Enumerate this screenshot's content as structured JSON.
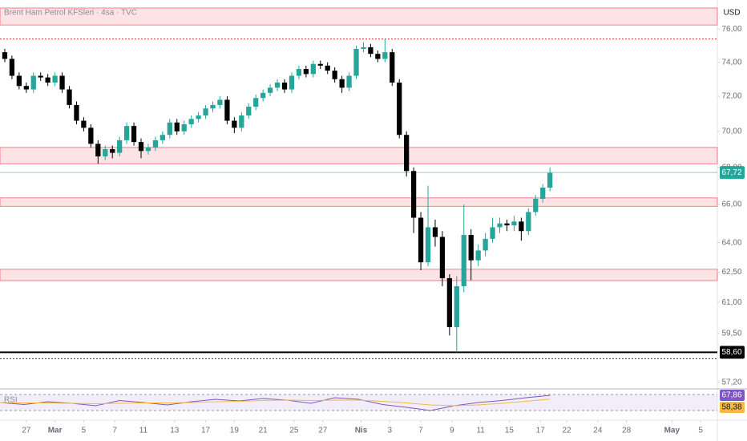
{
  "chart_data": {
    "type": "candlestick",
    "title": "Brent Ham Petrol KFSleri · 4sa · TVC",
    "currency": "USD",
    "log_scale": true,
    "grid": false,
    "up_color": "#26a69a",
    "down_color": "#000000",
    "xlim": [
      0,
      300
    ],
    "ylim": [
      56.9,
      77.8
    ],
    "yticks": [
      {
        "value": 76,
        "label": "76,00"
      },
      {
        "value": 74,
        "label": "74,00"
      },
      {
        "value": 72,
        "label": "72,00"
      },
      {
        "value": 70,
        "label": "70,00"
      },
      {
        "value": 68,
        "label": "68,00"
      },
      {
        "value": 66,
        "label": "66,00"
      },
      {
        "value": 64,
        "label": "64,00"
      },
      {
        "value": 62.5,
        "label": "62,50"
      },
      {
        "value": 61,
        "label": "61,00"
      },
      {
        "value": 59.5,
        "label": "59,50"
      },
      {
        "value": 57.2,
        "label": "57,20"
      }
    ],
    "xticks": [
      {
        "value": 11,
        "label": "27"
      },
      {
        "value": 23,
        "label": "Mar"
      },
      {
        "value": 35,
        "label": "5"
      },
      {
        "value": 48,
        "label": "7"
      },
      {
        "value": 60,
        "label": "11"
      },
      {
        "value": 73,
        "label": "13"
      },
      {
        "value": 86,
        "label": "17"
      },
      {
        "value": 98,
        "label": "19"
      },
      {
        "value": 110,
        "label": "21"
      },
      {
        "value": 123,
        "label": "25"
      },
      {
        "value": 135,
        "label": "27"
      },
      {
        "value": 151,
        "label": "Nis"
      },
      {
        "value": 163,
        "label": "3"
      },
      {
        "value": 176,
        "label": "7"
      },
      {
        "value": 189,
        "label": "9"
      },
      {
        "value": 201,
        "label": "11"
      },
      {
        "value": 213,
        "label": "15"
      },
      {
        "value": 226,
        "label": "17"
      },
      {
        "value": 237,
        "label": "22"
      },
      {
        "value": 250,
        "label": "24"
      },
      {
        "value": 262,
        "label": "28"
      },
      {
        "value": 281,
        "label": "May"
      },
      {
        "value": 293,
        "label": "5"
      }
    ],
    "candles": {
      "x": [
        2,
        5,
        8,
        11,
        14,
        17,
        20,
        23,
        26,
        29,
        32,
        35,
        38,
        41,
        44,
        47,
        50,
        53,
        56,
        59,
        62,
        65,
        68,
        71,
        74,
        77,
        80,
        83,
        86,
        89,
        92,
        95,
        98,
        101,
        104,
        107,
        110,
        113,
        116,
        119,
        122,
        125,
        128,
        131,
        134,
        137,
        140,
        143,
        146,
        149,
        152,
        155,
        158,
        161,
        164,
        167,
        170,
        173,
        176,
        179,
        182,
        185,
        188,
        191,
        194,
        197,
        200,
        203,
        206,
        209,
        212,
        215,
        218,
        221,
        224,
        227,
        230
      ],
      "open": [
        74.6,
        74.2,
        73.2,
        72.6,
        72.4,
        73.2,
        73.1,
        72.8,
        73.2,
        72.4,
        71.5,
        70.6,
        70.2,
        69.3,
        68.6,
        69.0,
        68.8,
        69.5,
        70.3,
        69.4,
        68.9,
        69.1,
        69.5,
        69.8,
        70.5,
        70.0,
        70.4,
        70.7,
        70.9,
        71.3,
        71.5,
        71.8,
        70.6,
        70.2,
        70.9,
        71.4,
        71.9,
        72.2,
        72.5,
        72.8,
        72.4,
        73.2,
        73.6,
        73.3,
        73.9,
        73.8,
        73.5,
        73.0,
        72.5,
        73.2,
        74.8,
        74.9,
        74.5,
        74.2,
        74.6,
        72.8,
        69.8,
        67.8,
        65.3,
        63.0,
        64.8,
        64.3,
        62.2,
        59.8,
        61.8,
        64.4,
        63.1,
        63.6,
        64.2,
        64.8,
        65.0,
        64.9,
        65.1,
        64.6,
        65.6,
        66.3,
        66.9
      ],
      "high": [
        74.8,
        74.4,
        73.4,
        72.8,
        73.4,
        73.4,
        73.3,
        73.4,
        73.4,
        72.6,
        71.7,
        70.8,
        70.4,
        69.5,
        69.2,
        69.2,
        69.7,
        70.5,
        70.5,
        69.6,
        69.3,
        69.7,
        70.0,
        70.7,
        70.7,
        70.6,
        70.9,
        71.1,
        71.5,
        71.7,
        72.0,
        72.0,
        70.8,
        71.1,
        71.6,
        72.1,
        72.4,
        72.7,
        73.0,
        73.0,
        73.4,
        73.8,
        73.8,
        74.1,
        74.1,
        74.0,
        73.7,
        73.2,
        73.4,
        75.0,
        75.2,
        75.1,
        74.7,
        75.4,
        74.8,
        73.0,
        70.0,
        68.0,
        65.6,
        67.0,
        65.2,
        64.6,
        62.4,
        62.3,
        66.0,
        64.7,
        63.9,
        64.5,
        65.3,
        65.3,
        65.2,
        65.4,
        65.3,
        65.8,
        66.5,
        67.1,
        68.0
      ],
      "low": [
        74.0,
        73.0,
        72.4,
        72.2,
        72.2,
        72.9,
        72.6,
        72.6,
        72.2,
        71.3,
        70.4,
        70.0,
        69.1,
        68.2,
        68.4,
        68.5,
        68.6,
        69.3,
        69.2,
        68.5,
        68.7,
        68.9,
        69.3,
        69.6,
        69.8,
        69.8,
        70.2,
        70.5,
        70.7,
        71.1,
        71.3,
        70.4,
        69.9,
        70.0,
        70.7,
        71.2,
        71.7,
        72.0,
        72.3,
        72.2,
        72.2,
        73.0,
        73.1,
        73.1,
        73.6,
        73.3,
        72.8,
        72.2,
        72.3,
        73.0,
        74.6,
        74.3,
        74.0,
        74.0,
        72.6,
        69.6,
        67.5,
        64.5,
        62.6,
        62.8,
        63.8,
        61.8,
        59.4,
        58.6,
        61.5,
        62.1,
        62.8,
        63.3,
        64.0,
        64.5,
        64.6,
        64.6,
        64.1,
        64.4,
        65.4,
        66.1,
        66.7
      ],
      "close": [
        74.2,
        73.2,
        72.6,
        72.4,
        73.2,
        73.1,
        72.8,
        73.2,
        72.4,
        71.5,
        70.6,
        70.2,
        69.3,
        68.6,
        69.0,
        68.8,
        69.5,
        70.3,
        69.4,
        68.9,
        69.1,
        69.5,
        69.8,
        70.5,
        70.0,
        70.4,
        70.7,
        70.9,
        71.3,
        71.5,
        71.8,
        70.6,
        70.2,
        70.9,
        71.4,
        71.9,
        72.2,
        72.5,
        72.8,
        72.4,
        73.2,
        73.6,
        73.3,
        73.9,
        73.8,
        73.5,
        73.0,
        72.5,
        73.2,
        74.8,
        74.9,
        74.5,
        74.2,
        74.6,
        72.8,
        69.8,
        67.8,
        65.3,
        63.0,
        64.8,
        64.3,
        62.2,
        59.8,
        61.8,
        64.4,
        63.1,
        63.6,
        64.2,
        64.8,
        65.0,
        64.9,
        65.1,
        64.6,
        65.6,
        66.3,
        66.9,
        67.7
      ]
    },
    "zones": [
      {
        "low": 76.25,
        "high": 77.3
      },
      {
        "low": 68.2,
        "high": 69.1
      },
      {
        "low": 65.9,
        "high": 66.35
      },
      {
        "low": 62.08,
        "high": 62.65
      }
    ],
    "levels": [
      {
        "value": 75.4,
        "color": "#d32f2f",
        "style": "dotted"
      },
      {
        "value": 67.72,
        "color": "#9fc9c4",
        "style": "solid"
      },
      {
        "value": 58.6,
        "color": "#000000",
        "style": "solid"
      },
      {
        "value": 58.3,
        "color": "#333333",
        "style": "dotted"
      }
    ],
    "price_labels": [
      {
        "value": 67.72,
        "label": "67,72",
        "color": "#26a69a"
      },
      {
        "value": 58.6,
        "label": "58,60",
        "color": "#000000"
      }
    ],
    "rsi": {
      "label": "RSI",
      "ylim": [
        10,
        80
      ],
      "bands": [
        70,
        30
      ],
      "x": [
        0,
        10,
        20,
        30,
        40,
        50,
        60,
        70,
        80,
        90,
        100,
        110,
        120,
        130,
        140,
        150,
        160,
        170,
        180,
        190,
        200,
        210,
        220,
        230
      ],
      "series": [
        {
          "name": "RSI",
          "color": "#7e57c2",
          "values": [
            50,
            45,
            52,
            48,
            42,
            55,
            50,
            44,
            52,
            58,
            54,
            60,
            56,
            48,
            62,
            58,
            45,
            38,
            30,
            42,
            50,
            55,
            62,
            67.86
          ],
          "last": {
            "value": 67.86,
            "label": "67,86"
          }
        },
        {
          "name": "RSI MA",
          "color": "#f5b942",
          "values": [
            50,
            49,
            49,
            48,
            47,
            48,
            49,
            49,
            50,
            52,
            53,
            55,
            56,
            55,
            56,
            56,
            53,
            49,
            44,
            42,
            44,
            48,
            53,
            58.38
          ],
          "last": {
            "value": 58.38,
            "label": "58,38"
          }
        }
      ]
    }
  }
}
